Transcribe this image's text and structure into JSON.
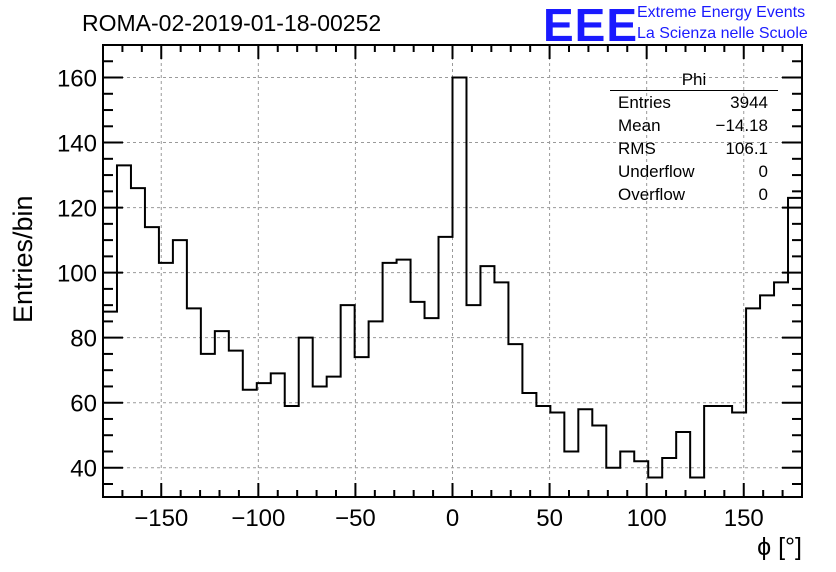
{
  "title": "ROMA-02-2019-01-18-00252",
  "logo": {
    "mark": "EEE",
    "line1": "Extreme Energy Events",
    "line2": "La Scienza nelle Scuole",
    "color": "#1a1aff"
  },
  "stats": {
    "title": "Phi",
    "rows": [
      {
        "label": "Entries",
        "value": "3944"
      },
      {
        "label": "Mean",
        "value": "−14.18"
      },
      {
        "label": "RMS",
        "value": "106.1"
      },
      {
        "label": "Underflow",
        "value": "0"
      },
      {
        "label": "Overflow",
        "value": "0"
      }
    ]
  },
  "chart_data": {
    "type": "histogram",
    "xlabel": "ϕ [°]",
    "ylabel": "Entries/bin",
    "xlim": [
      -180,
      180
    ],
    "ylim": [
      31,
      170
    ],
    "bin_width": 7.2,
    "bin_start": -180,
    "values": [
      88,
      133,
      126,
      114,
      103,
      110,
      89,
      75,
      82,
      76,
      64,
      66,
      69,
      59,
      80,
      65,
      68,
      90,
      74,
      85,
      103,
      104,
      91,
      86,
      111,
      160,
      90,
      102,
      97,
      78,
      63,
      59,
      57,
      45,
      58,
      53,
      40,
      45,
      42,
      37,
      43,
      51,
      37,
      59,
      59,
      57,
      89,
      93,
      97,
      123
    ],
    "xticks": [
      -150,
      -100,
      -50,
      0,
      50,
      100,
      150
    ],
    "xtick_labels": [
      "−150",
      "−100",
      "−50",
      "0",
      "50",
      "100",
      "150"
    ],
    "yticks": [
      40,
      60,
      80,
      100,
      120,
      140,
      160
    ],
    "grid": true,
    "line_color": "#000000"
  }
}
